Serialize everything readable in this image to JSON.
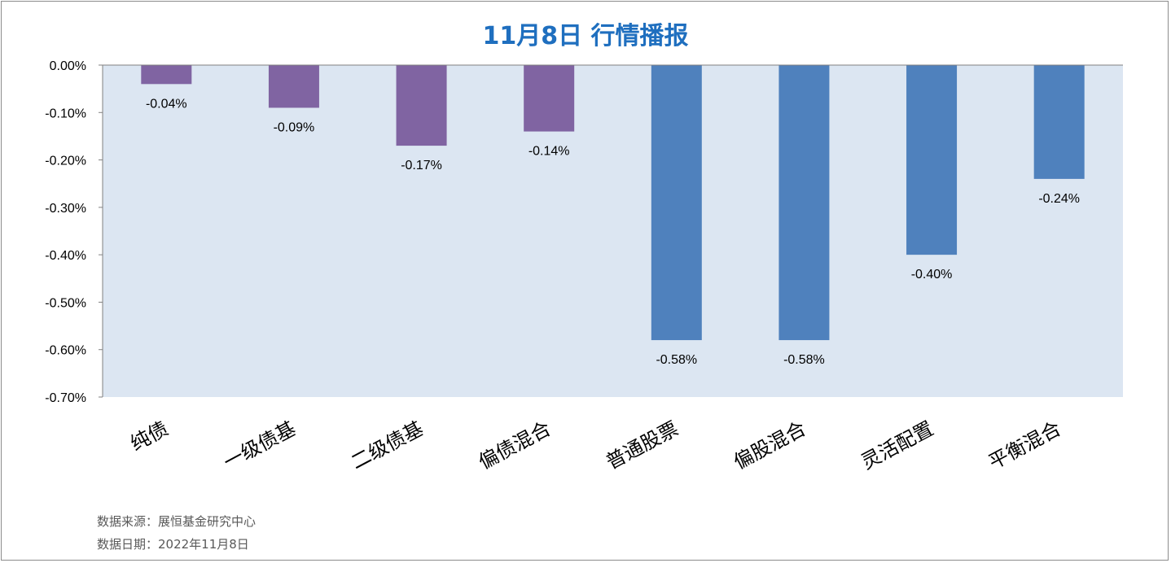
{
  "chart_data": {
    "type": "bar",
    "title": "11月8日 行情播报",
    "categories": [
      "纯债",
      "一级债基",
      "二级债基",
      "偏债混合",
      "普通股票",
      "偏股混合",
      "灵活配置",
      "平衡混合"
    ],
    "values": [
      -0.04,
      -0.09,
      -0.17,
      -0.14,
      -0.58,
      -0.58,
      -0.4,
      -0.24
    ],
    "data_labels": [
      "-0.04%",
      "-0.09%",
      "-0.17%",
      "-0.14%",
      "-0.58%",
      "-0.58%",
      "-0.40%",
      "-0.24%"
    ],
    "bar_colors": [
      "#8064a2",
      "#8064a2",
      "#8064a2",
      "#8064a2",
      "#4f81bd",
      "#4f81bd",
      "#4f81bd",
      "#4f81bd"
    ],
    "ylim": [
      -0.7,
      0.0
    ],
    "yticks": [
      0.0,
      -0.1,
      -0.2,
      -0.3,
      -0.4,
      -0.5,
      -0.6,
      -0.7
    ],
    "ytick_labels": [
      "0.00%",
      "-0.10%",
      "-0.20%",
      "-0.30%",
      "-0.40%",
      "-0.50%",
      "-0.60%",
      "-0.70%"
    ],
    "xlabel": "",
    "ylabel": "",
    "grid": false,
    "plot_background": "#dce6f2",
    "title_color": "#1f6fbf"
  },
  "footer": {
    "source": "数据来源：展恒基金研究中心",
    "date": "数据日期：2022年11月8日"
  }
}
